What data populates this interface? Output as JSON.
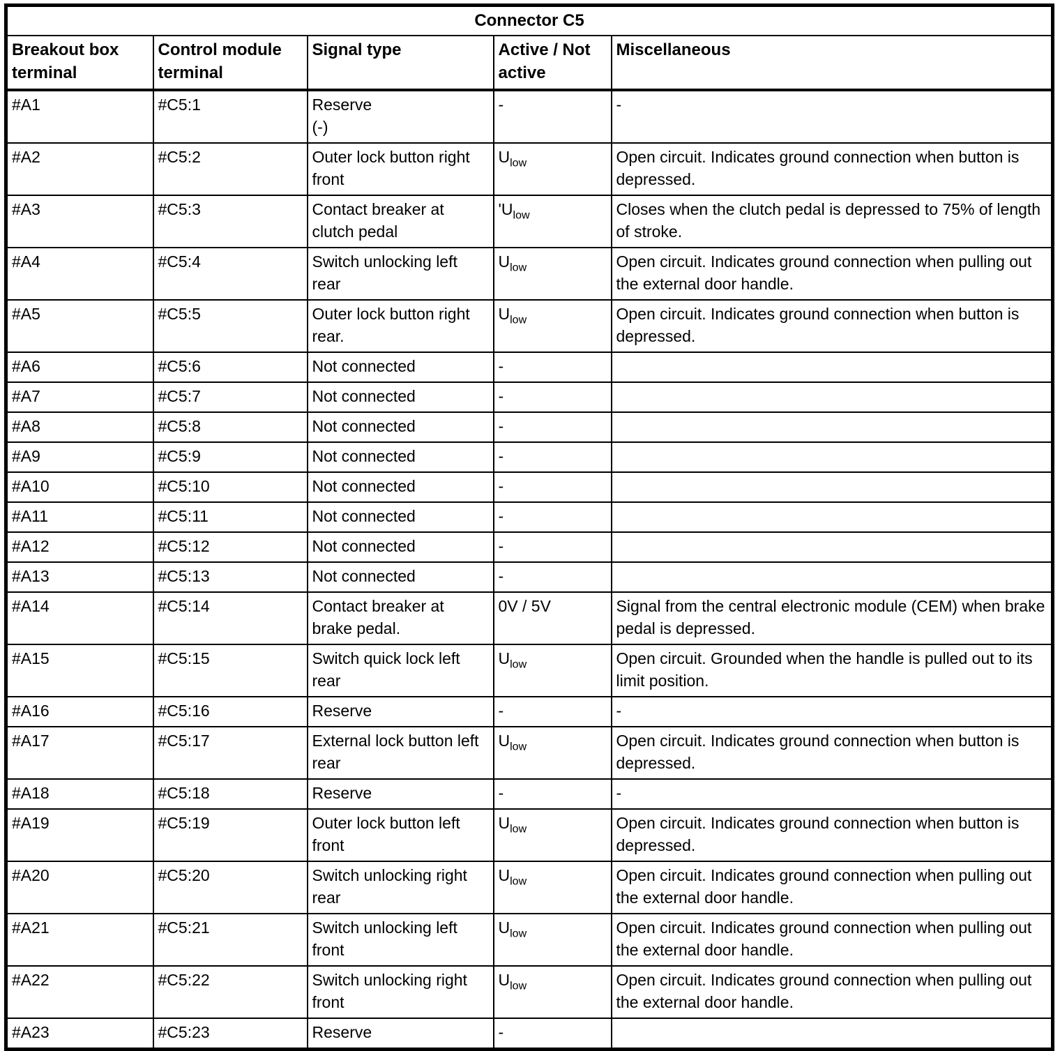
{
  "title": "Connector C5",
  "colors": {
    "border": "#000000",
    "text": "#000000",
    "background": "#ffffff"
  },
  "table": {
    "columns": [
      "Breakout box terminal",
      "Control module terminal",
      "Signal type",
      "Active / Not active",
      "Miscellaneous"
    ],
    "rows": [
      {
        "breakout": "#A1",
        "module": "#C5:1",
        "signal": "Reserve\n(-)",
        "active": "-",
        "active_sub": "",
        "misc": "-",
        "tall": true
      },
      {
        "breakout": "#A2",
        "module": "#C5:2",
        "signal": "Outer lock button right front",
        "active": "U",
        "active_sub": "low",
        "misc": "Open circuit. Indicates ground connection when button is depressed.",
        "tall": true
      },
      {
        "breakout": "#A3",
        "module": "#C5:3",
        "signal": "Contact breaker at clutch pedal",
        "active": "'U",
        "active_sub": "low",
        "misc": "Closes when the clutch pedal is depressed to 75% of length of stroke.",
        "tall": true
      },
      {
        "breakout": "#A4",
        "module": "#C5:4",
        "signal": "Switch unlocking left rear",
        "active": "U",
        "active_sub": "low",
        "misc": "Open circuit. Indicates ground connection when pulling out the external door handle.",
        "tall": true
      },
      {
        "breakout": "#A5",
        "module": "#C5:5",
        "signal": "Outer lock button right rear.",
        "active": "U",
        "active_sub": "low",
        "misc": "Open circuit. Indicates ground connection when button is depressed.",
        "tall": true
      },
      {
        "breakout": "#A6",
        "module": "#C5:6",
        "signal": "Not connected",
        "active": "-",
        "active_sub": "",
        "misc": "",
        "tall": false
      },
      {
        "breakout": "#A7",
        "module": "#C5:7",
        "signal": "Not connected",
        "active": "-",
        "active_sub": "",
        "misc": "",
        "tall": false
      },
      {
        "breakout": "#A8",
        "module": "#C5:8",
        "signal": "Not connected",
        "active": "-",
        "active_sub": "",
        "misc": "",
        "tall": false
      },
      {
        "breakout": "#A9",
        "module": "#C5:9",
        "signal": "Not connected",
        "active": "-",
        "active_sub": "",
        "misc": "",
        "tall": false
      },
      {
        "breakout": "#A10",
        "module": "#C5:10",
        "signal": "Not connected",
        "active": "-",
        "active_sub": "",
        "misc": "",
        "tall": false
      },
      {
        "breakout": "#A11",
        "module": "#C5:11",
        "signal": "Not connected",
        "active": "-",
        "active_sub": "",
        "misc": "",
        "tall": false
      },
      {
        "breakout": "#A12",
        "module": "#C5:12",
        "signal": "Not connected",
        "active": "-",
        "active_sub": "",
        "misc": "",
        "tall": false
      },
      {
        "breakout": "#A13",
        "module": "#C5:13",
        "signal": "Not connected",
        "active": "-",
        "active_sub": "",
        "misc": "",
        "tall": false
      },
      {
        "breakout": "#A14",
        "module": "#C5:14",
        "signal": "Contact breaker at brake pedal.",
        "active": "0V / 5V",
        "active_sub": "",
        "misc": "Signal from the central electronic module (CEM) when brake pedal is depressed.",
        "tall": true
      },
      {
        "breakout": "#A15",
        "module": "#C5:15",
        "signal": "Switch quick lock left rear",
        "active": "U",
        "active_sub": "low",
        "misc": "Open circuit. Grounded when the handle is pulled out to its limit position.",
        "tall": true
      },
      {
        "breakout": "#A16",
        "module": "#C5:16",
        "signal": "Reserve",
        "active": "-",
        "active_sub": "",
        "misc": "-",
        "tall": false
      },
      {
        "breakout": "#A17",
        "module": "#C5:17",
        "signal": "External lock button left rear",
        "active": "U",
        "active_sub": "low",
        "misc": "Open circuit. Indicates ground connection when button is depressed.",
        "tall": true
      },
      {
        "breakout": "#A18",
        "module": "#C5:18",
        "signal": "Reserve",
        "active": "-",
        "active_sub": "",
        "misc": "-",
        "tall": false
      },
      {
        "breakout": "#A19",
        "module": "#C5:19",
        "signal": "Outer lock button left front",
        "active": "U",
        "active_sub": "low",
        "misc": "Open circuit. Indicates ground connection when button is depressed.",
        "tall": true
      },
      {
        "breakout": "#A20",
        "module": "#C5:20",
        "signal": "Switch unlocking right rear",
        "active": "U",
        "active_sub": "low",
        "misc": "Open circuit. Indicates ground connection when pulling out the external door handle.",
        "tall": true
      },
      {
        "breakout": "#A21",
        "module": "#C5:21",
        "signal": "Switch unlocking left front",
        "active": "U",
        "active_sub": "low",
        "misc": "Open circuit. Indicates ground connection when pulling out the external door handle.",
        "tall": true
      },
      {
        "breakout": "#A22",
        "module": "#C5:22",
        "signal": "Switch unlocking right front",
        "active": "U",
        "active_sub": "low",
        "misc": "Open circuit. Indicates ground connection when pulling out the external door handle.",
        "tall": true
      },
      {
        "breakout": "#A23",
        "module": "#C5:23",
        "signal": "Reserve",
        "active": "-",
        "active_sub": "",
        "misc": "",
        "tall": false
      }
    ]
  }
}
